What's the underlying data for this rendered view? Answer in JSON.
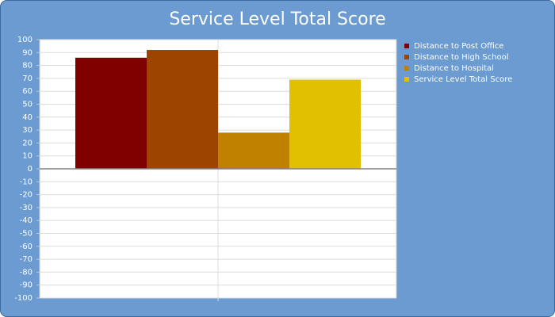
{
  "chart_data": {
    "type": "bar",
    "title": "Service Level Total Score",
    "categories": [
      null
    ],
    "series": [
      {
        "name": "Distance to Post Office",
        "color": "#800000",
        "values": [
          86
        ]
      },
      {
        "name": "Distance to High School",
        "color": "#9c4400",
        "values": [
          92
        ]
      },
      {
        "name": "Distance to Hospital",
        "color": "#c08000",
        "values": [
          28
        ]
      },
      {
        "name": "Service Level Total Score",
        "color": "#e0c000",
        "values": [
          69
        ]
      }
    ],
    "ylim": [
      -100,
      100
    ],
    "yticks": [
      -100,
      -90,
      -80,
      -70,
      -60,
      -50,
      -40,
      -30,
      -20,
      -10,
      0,
      10,
      20,
      30,
      40,
      50,
      60,
      70,
      80,
      90,
      100
    ],
    "grid": true,
    "legend": "right"
  }
}
